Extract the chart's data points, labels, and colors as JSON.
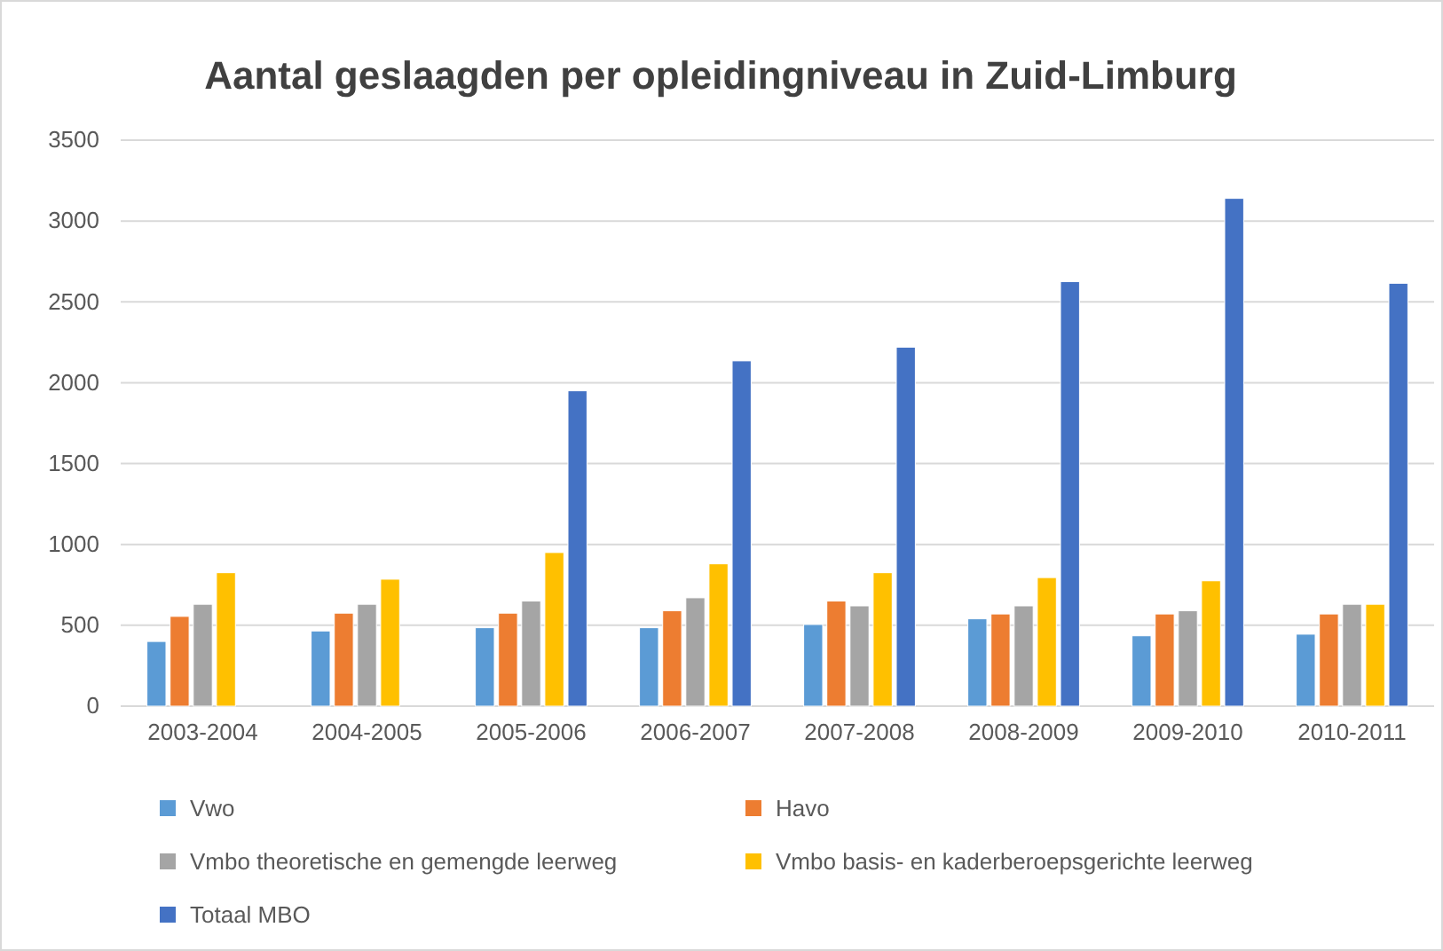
{
  "chart_data": {
    "type": "bar",
    "title": "Aantal geslaagden per opleidingniveau in Zuid-Limburg",
    "categories": [
      "2003-2004",
      "2004-2005",
      "2005-2006",
      "2006-2007",
      "2007-2008",
      "2008-2009",
      "2009-2010",
      "2010-2011"
    ],
    "series": [
      {
        "name": "Vwo",
        "color": "#5b9bd5",
        "values": [
          400,
          465,
          485,
          485,
          505,
          540,
          435,
          445
        ]
      },
      {
        "name": "Havo",
        "color": "#ed7d31",
        "values": [
          555,
          575,
          575,
          590,
          650,
          570,
          570,
          570
        ]
      },
      {
        "name": "Vmbo theoretische en gemengde leerweg",
        "color": "#a5a5a5",
        "values": [
          630,
          630,
          650,
          670,
          620,
          620,
          590,
          630
        ]
      },
      {
        "name": "Vmbo basis- en kaderberoepsgerichte leerweg",
        "color": "#ffc000",
        "values": [
          825,
          785,
          950,
          880,
          825,
          795,
          775,
          630
        ]
      },
      {
        "name": "Totaal MBO",
        "color": "#4472c4",
        "values": [
          null,
          null,
          1950,
          2135,
          2220,
          2625,
          3140,
          2615
        ]
      }
    ],
    "ylim": [
      0,
      3500
    ],
    "yticks": [
      0,
      500,
      1000,
      1500,
      2000,
      2500,
      3000,
      3500
    ],
    "grid": "y",
    "legend": "bottom"
  }
}
